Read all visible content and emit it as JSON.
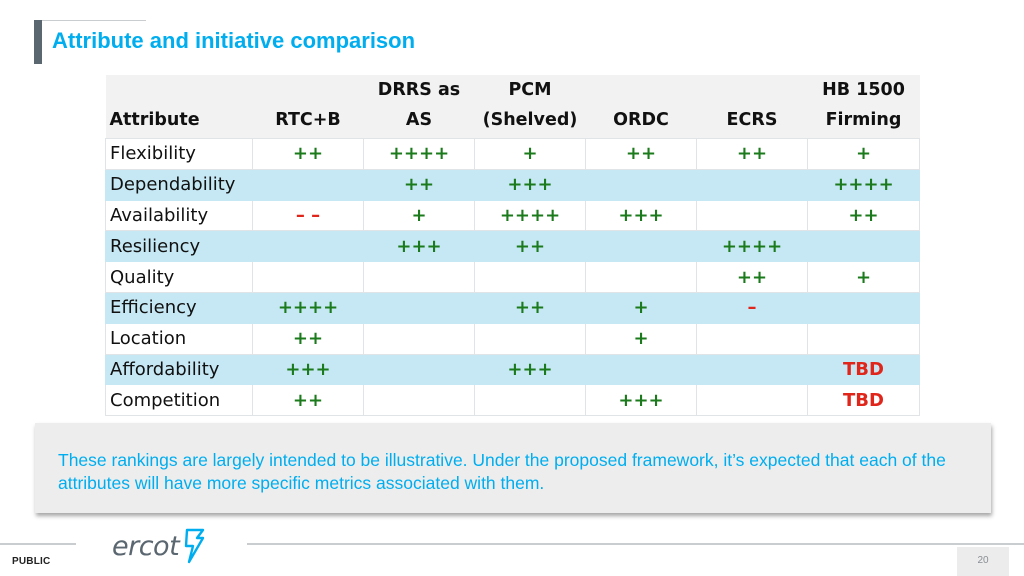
{
  "title": "Attribute and initiative comparison",
  "table": {
    "headers": [
      [
        "",
        "Attribute"
      ],
      [
        "",
        "RTC+B"
      ],
      [
        "DRRS as",
        "AS"
      ],
      [
        "PCM",
        "(Shelved)"
      ],
      [
        "",
        "ORDC"
      ],
      [
        "",
        "ECRS"
      ],
      [
        "HB 1500",
        "Firming"
      ]
    ],
    "rows": [
      {
        "attribute": "Flexibility",
        "cells": [
          "++",
          "++++",
          "+",
          "++",
          "++",
          "+"
        ]
      },
      {
        "attribute": "Dependability",
        "cells": [
          "",
          "++",
          "+++",
          "",
          "",
          "++++"
        ]
      },
      {
        "attribute": "Availability",
        "cells": [
          "– –",
          "+",
          "++++",
          "+++",
          "",
          "++"
        ]
      },
      {
        "attribute": "Resiliency",
        "cells": [
          "",
          "+++",
          "++",
          "",
          "++++",
          ""
        ]
      },
      {
        "attribute": "Quality",
        "cells": [
          "",
          "",
          "",
          "",
          "++",
          "+"
        ]
      },
      {
        "attribute": "Efficiency",
        "cells": [
          "++++",
          "",
          "++",
          "+",
          "–",
          ""
        ]
      },
      {
        "attribute": "Location",
        "cells": [
          "++",
          "",
          "",
          "+",
          "",
          ""
        ]
      },
      {
        "attribute": "Affordability",
        "cells": [
          "+++",
          "",
          "+++",
          "",
          "",
          "TBD"
        ]
      },
      {
        "attribute": "Competition",
        "cells": [
          "++",
          "",
          "",
          "+++",
          "",
          "TBD"
        ]
      }
    ]
  },
  "note": "These rankings are largely intended to be illustrative.  Under the proposed framework, it’s expected that each of the attributes will have more specific metrics associated with them.",
  "footer": {
    "classification": "PUBLIC",
    "logo_text": "ercot",
    "page_number": "20"
  },
  "colors": {
    "title": "#00aeef",
    "shaded_row": "#c6e8f4",
    "positive": "#1b7a1b",
    "negative": "#e0261b"
  }
}
